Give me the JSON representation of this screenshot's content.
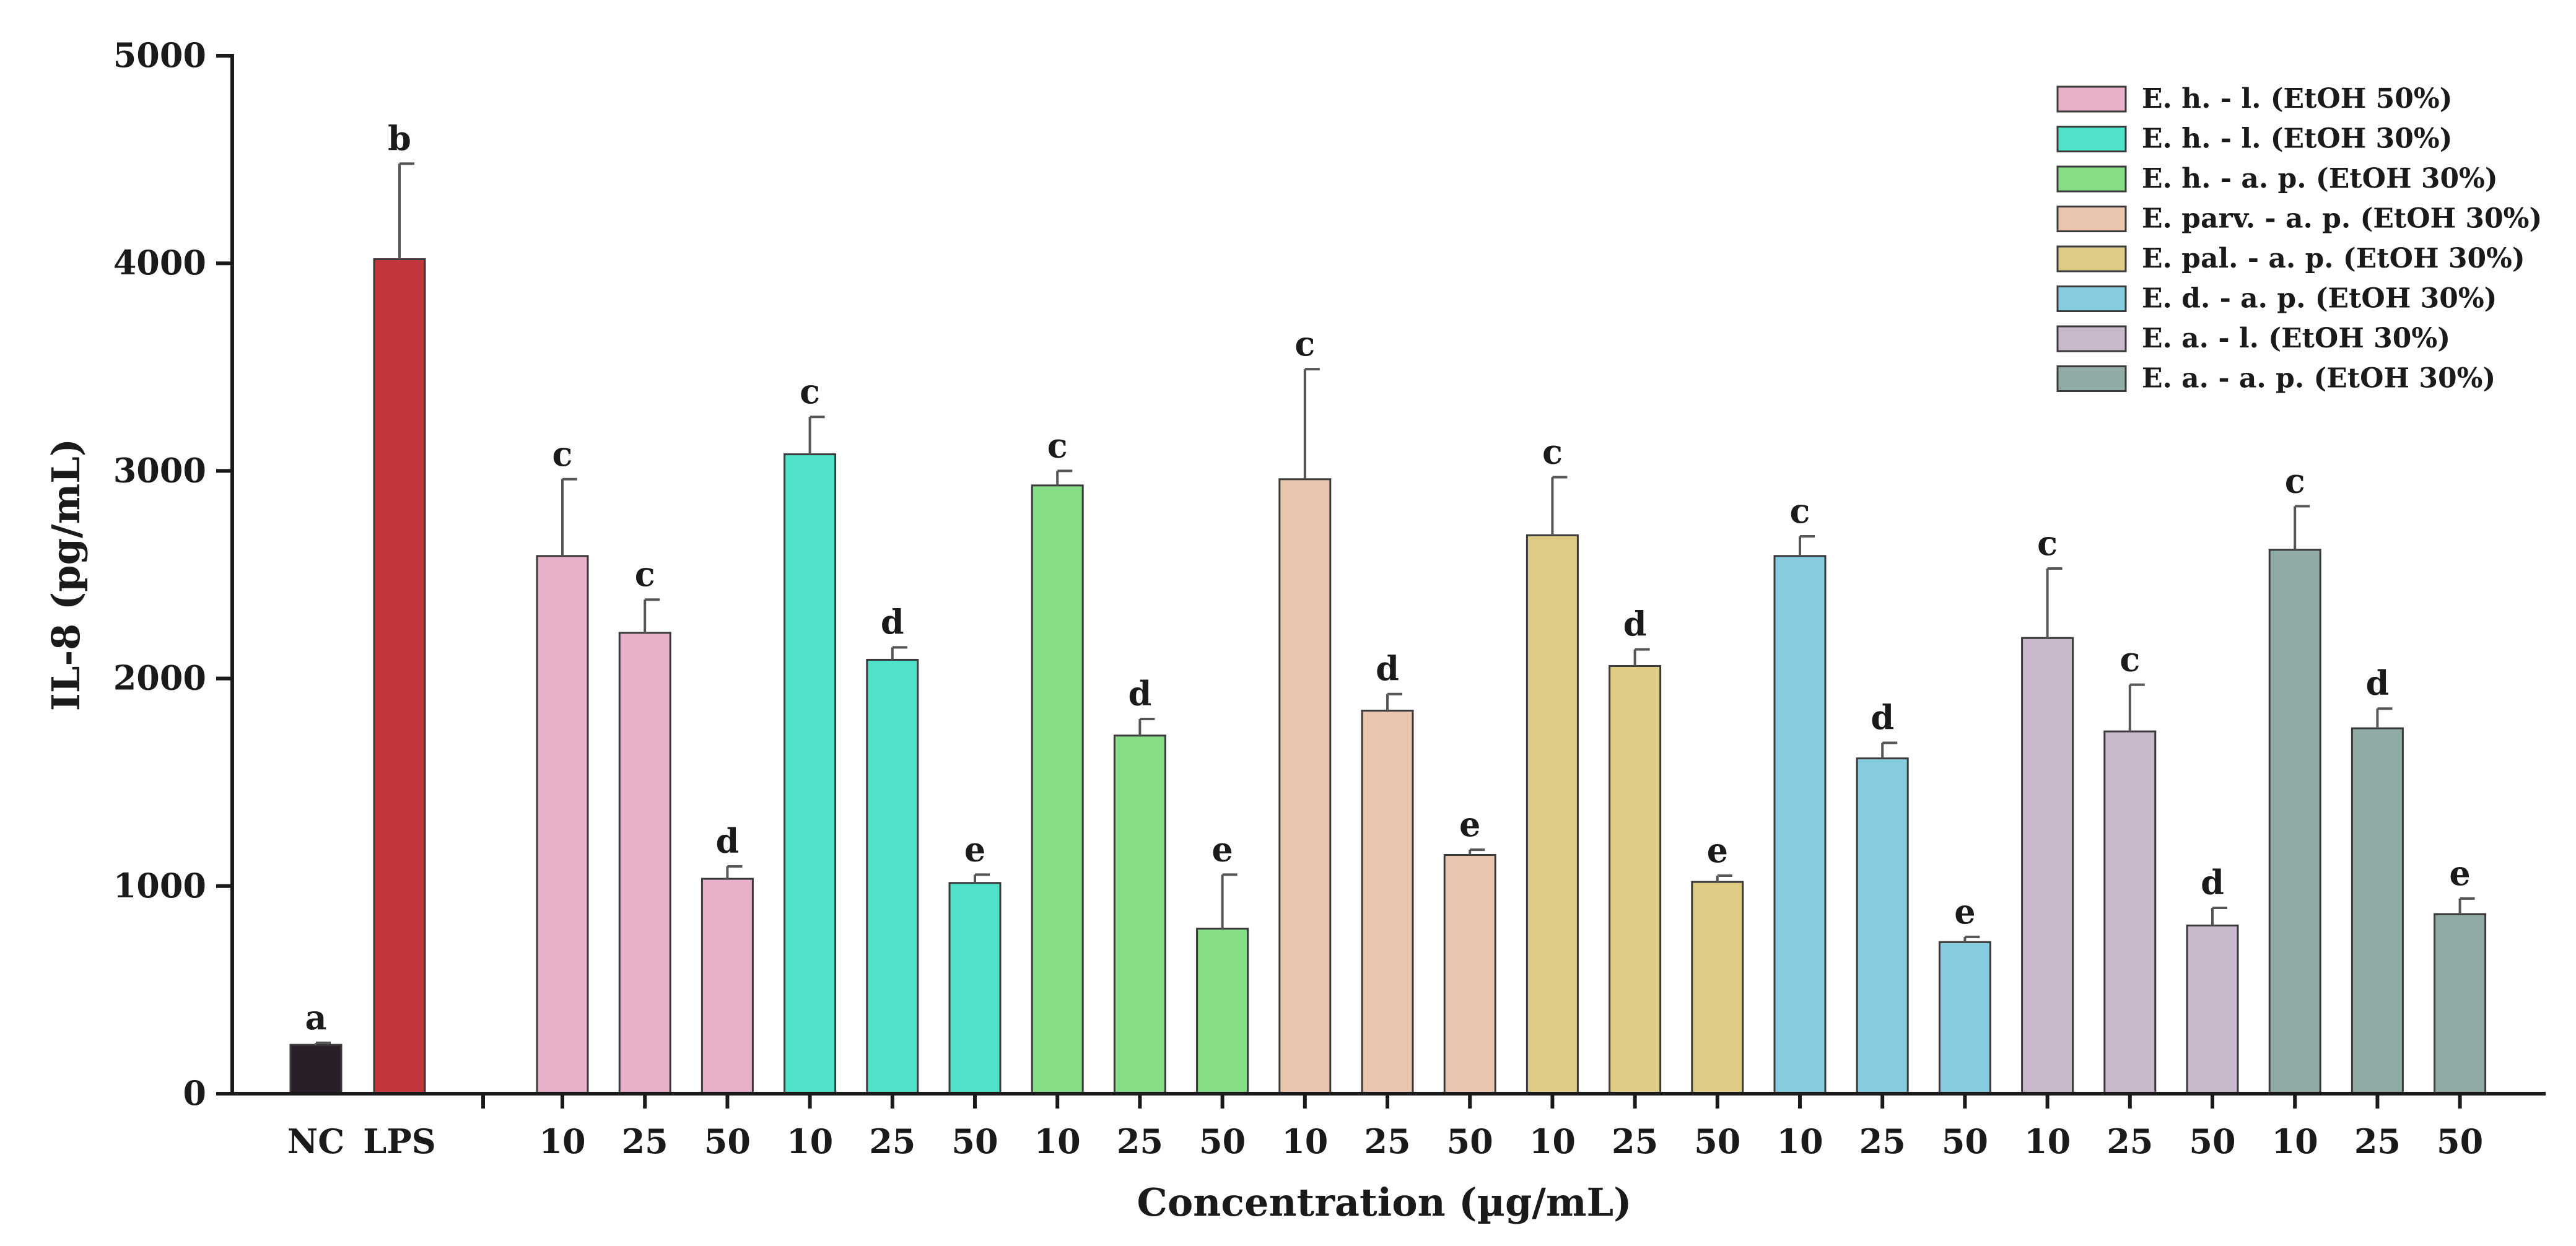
{
  "chart_data": {
    "type": "bar",
    "title": "",
    "ylabel": "IL-8 (pg/mL)",
    "xlabel": "Concentration (µg/mL)",
    "ylim": [
      0,
      5000
    ],
    "yticks": [
      "0",
      "1000",
      "2000",
      "3000",
      "4000",
      "5000"
    ],
    "controls": [
      {
        "label": "NC",
        "value": 235,
        "error": 10,
        "sig": "a",
        "color": "#2a1e28"
      },
      {
        "label": "LPS",
        "value": 4020,
        "error": 460,
        "sig": "b",
        "color": "#c4363a"
      }
    ],
    "groups": [
      {
        "name": "E. h. - l. (EtOH 50%)",
        "color": "#e8afc8",
        "concentrations": [
          "10",
          "25",
          "50"
        ],
        "values": [
          2590,
          2220,
          1035
        ],
        "errors": [
          370,
          160,
          60
        ],
        "sig": [
          "c",
          "c",
          "d"
        ]
      },
      {
        "name": "E. h. - l. (EtOH 30%)",
        "color": "#4fe2c9",
        "concentrations": [
          "10",
          "25",
          "50"
        ],
        "values": [
          3080,
          2090,
          1015
        ],
        "errors": [
          180,
          60,
          40
        ],
        "sig": [
          "c",
          "d",
          "e"
        ]
      },
      {
        "name": "E. h. - a. p. (EtOH 30%)",
        "color": "#85dd86",
        "concentrations": [
          "10",
          "25",
          "50"
        ],
        "values": [
          2930,
          1725,
          795
        ],
        "errors": [
          70,
          80,
          260
        ],
        "sig": [
          "c",
          "d",
          "e"
        ]
      },
      {
        "name": "E. parv. - a. p. (EtOH 30%)",
        "color": "#e9c5ae",
        "concentrations": [
          "10",
          "25",
          "50"
        ],
        "values": [
          2960,
          1845,
          1150
        ],
        "errors": [
          530,
          80,
          25
        ],
        "sig": [
          "c",
          "d",
          "e"
        ]
      },
      {
        "name": "E. pal. - a. p. (EtOH 30%)",
        "color": "#dfcc84",
        "concentrations": [
          "10",
          "25",
          "50"
        ],
        "values": [
          2690,
          2060,
          1020
        ],
        "errors": [
          280,
          80,
          30
        ],
        "sig": [
          "c",
          "d",
          "e"
        ]
      },
      {
        "name": "E. d. - a. p. (EtOH 30%)",
        "color": "#86ccdf",
        "concentrations": [
          "10",
          "25",
          "50"
        ],
        "values": [
          2590,
          1615,
          730
        ],
        "errors": [
          95,
          75,
          25
        ],
        "sig": [
          "c",
          "d",
          "e"
        ]
      },
      {
        "name": "E. a. - l. (EtOH 30%)",
        "color": "#c9b8cc",
        "concentrations": [
          "10",
          "25",
          "50"
        ],
        "values": [
          2195,
          1745,
          810
        ],
        "errors": [
          335,
          225,
          85
        ],
        "sig": [
          "c",
          "c",
          "d"
        ]
      },
      {
        "name": "E. a. - a. p. (EtOH 30%)",
        "color": "#90aba6",
        "concentrations": [
          "10",
          "25",
          "50"
        ],
        "values": [
          2620,
          1760,
          865
        ],
        "errors": [
          210,
          95,
          75
        ],
        "sig": [
          "c",
          "d",
          "e"
        ]
      }
    ],
    "legend_position": "top-right"
  }
}
